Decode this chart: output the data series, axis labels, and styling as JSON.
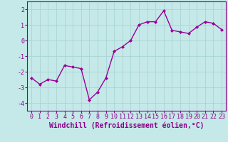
{
  "x": [
    0,
    1,
    2,
    3,
    4,
    5,
    6,
    7,
    8,
    9,
    10,
    11,
    12,
    13,
    14,
    15,
    16,
    17,
    18,
    19,
    20,
    21,
    22,
    23
  ],
  "y": [
    -2.4,
    -2.8,
    -2.5,
    -2.6,
    -1.6,
    -1.7,
    -1.8,
    -3.8,
    -3.3,
    -2.4,
    -0.7,
    -0.4,
    0.0,
    1.0,
    1.2,
    1.2,
    1.9,
    0.65,
    0.55,
    0.45,
    0.85,
    1.2,
    1.1,
    0.7
  ],
  "line_color": "#990099",
  "marker": "D",
  "marker_size": 2,
  "bg_color": "#c5e8e8",
  "grid_color": "#aad4d4",
  "xlabel": "Windchill (Refroidissement éolien,°C)",
  "xlabel_color": "#880088",
  "xlabel_fontsize": 7,
  "tick_color": "#880088",
  "tick_fontsize": 6,
  "ylim": [
    -4.5,
    2.5
  ],
  "xlim": [
    -0.5,
    23.5
  ],
  "yticks": [
    -4,
    -3,
    -2,
    -1,
    0,
    1,
    2
  ],
  "xticks": [
    0,
    1,
    2,
    3,
    4,
    5,
    6,
    7,
    8,
    9,
    10,
    11,
    12,
    13,
    14,
    15,
    16,
    17,
    18,
    19,
    20,
    21,
    22,
    23
  ],
  "line_width": 1.0,
  "spine_color": "#880088"
}
